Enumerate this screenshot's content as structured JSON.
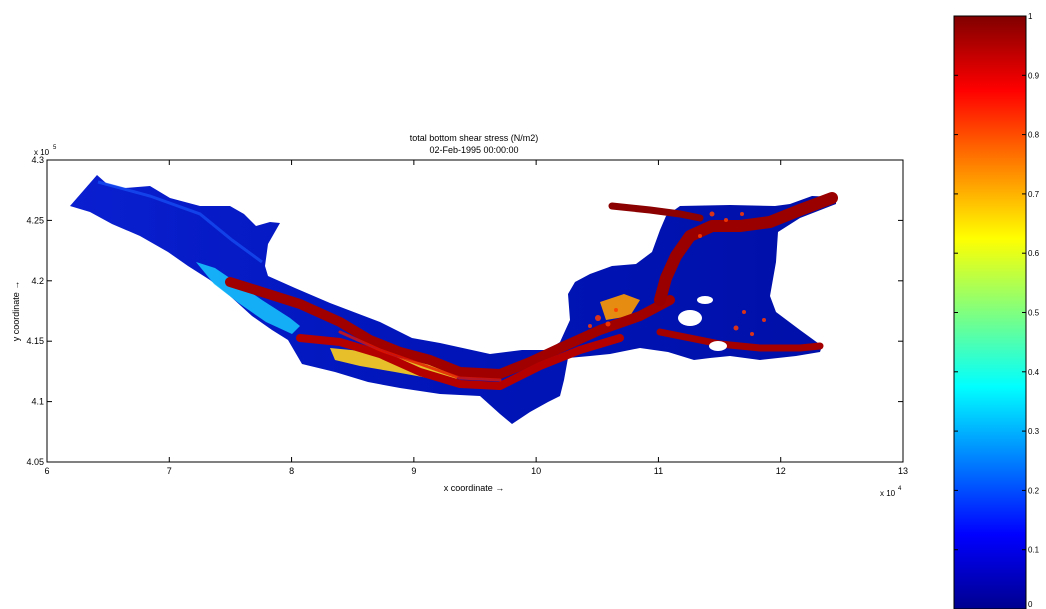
{
  "chart_data": {
    "type": "heatmap",
    "title": "total bottom shear stress (N/m2)",
    "subtitle": "02-Feb-1995 00:00:00",
    "xlabel": "x coordinate →",
    "ylabel": "y coordinate →",
    "xlim": [
      60000,
      130000
    ],
    "ylim": [
      405000,
      430000
    ],
    "x_ticks": [
      6,
      7,
      8,
      9,
      10,
      11,
      12,
      13
    ],
    "y_ticks": [
      4.05,
      4.1,
      4.15,
      4.2,
      4.25,
      4.3
    ],
    "x_multiplier": "x 10",
    "x_exponent": "4",
    "y_multiplier": "x 10",
    "y_exponent": "5",
    "colorbar": {
      "colormap": "jet",
      "range": [
        0,
        1
      ],
      "ticks": [
        0,
        0.1,
        0.2,
        0.3,
        0.4,
        0.5,
        0.6,
        0.7,
        0.8,
        0.9,
        1
      ]
    },
    "colors": {
      "background_low": "#00008f",
      "channel_high": "#8b0000",
      "mid": "#ff2000"
    }
  }
}
